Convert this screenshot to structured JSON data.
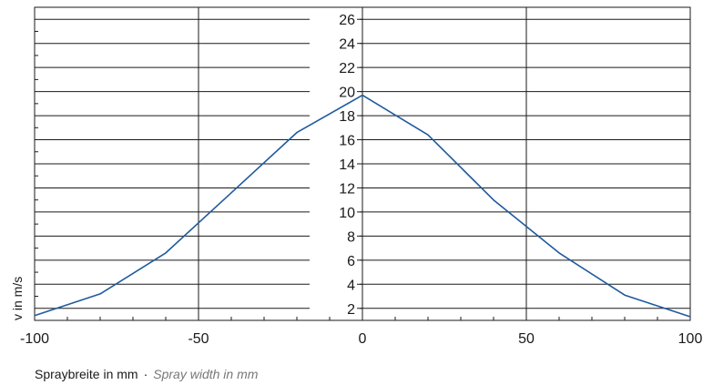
{
  "chart_data": {
    "type": "line",
    "xlabel_de": "Spraybreite in mm",
    "xlabel_sep": "·",
    "xlabel_en": "Spray width in mm",
    "ylabel": "v in m/s",
    "xlim": [
      -100,
      100
    ],
    "ylim": [
      1,
      27
    ],
    "x_ticks": [
      -100,
      -50,
      0,
      50,
      100
    ],
    "y_ticks": [
      2,
      4,
      6,
      8,
      10,
      12,
      14,
      16,
      18,
      20,
      22,
      24,
      26
    ],
    "grid": true,
    "series": [
      {
        "color": "#1f5a9e",
        "x": [
          -100,
          -80,
          -60,
          -40,
          -20,
          0,
          20,
          40,
          60,
          80,
          100
        ],
        "y": [
          1.4,
          3.2,
          6.6,
          11.6,
          16.6,
          19.7,
          16.4,
          11.0,
          6.6,
          3.1,
          1.3
        ]
      }
    ]
  }
}
